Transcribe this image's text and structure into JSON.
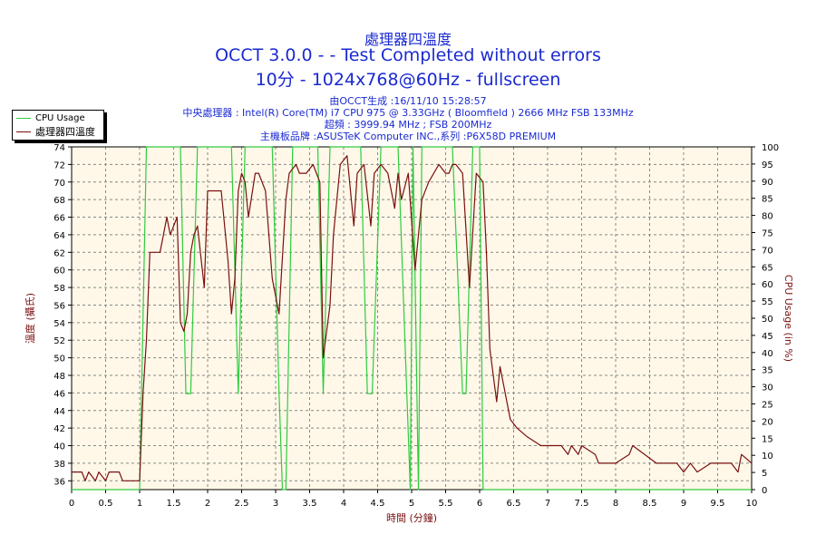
{
  "titles": {
    "line1": "處理器四溫度",
    "line2": "OCCT 3.0.0 -  - Test Completed without errors",
    "line3": "10分 - 1024x768@60Hz - fullscreen"
  },
  "info": {
    "line1": "由OCCT生成 :16/11/10 15:28:57",
    "line2": "中央處理器 : Intel(R) Core(TM) i7 CPU 975 @ 3.33GHz ( Bloomfield ) 2666 MHz FSB 133MHz",
    "line3": "超頻 : 3999.94 MHz ; FSB 200MHz",
    "line4": "主機板品牌 :ASUSTeK Computer INC.,系列 :P6X58D PREMIUM"
  },
  "colors": {
    "title": "#1a2ad1",
    "axis_label": "#7a1010",
    "cpu_usage": "#2ecc40",
    "temperature": "#7a1010",
    "plot_background": "#fff8e8",
    "grid": "#888888"
  },
  "chart_data": {
    "type": "line",
    "xlabel": "時間 (分鐘)",
    "ylabel_left": "溫度 (攝氏)",
    "ylabel_right": "CPU Usage (in %)",
    "xlim": [
      0,
      10
    ],
    "ylim_left": [
      35,
      74
    ],
    "ylim_right": [
      0,
      100
    ],
    "x_ticks": [
      "0",
      "0.5",
      "1",
      "1.5",
      "2",
      "2.5",
      "3",
      "3.5",
      "4",
      "4.5",
      "5",
      "5.5",
      "6",
      "6.5",
      "7",
      "7.5",
      "8",
      "8.5",
      "9",
      "9.5",
      "10"
    ],
    "y_ticks_left": [
      "36",
      "38",
      "40",
      "42",
      "44",
      "46",
      "48",
      "50",
      "52",
      "54",
      "56",
      "58",
      "60",
      "62",
      "64",
      "66",
      "68",
      "70",
      "72",
      "74"
    ],
    "y_ticks_right": [
      "0",
      "5",
      "10",
      "15",
      "20",
      "25",
      "30",
      "35",
      "40",
      "45",
      "50",
      "55",
      "60",
      "65",
      "70",
      "75",
      "80",
      "85",
      "90",
      "95",
      "100"
    ],
    "grid": true,
    "legend_position": "top-left outside plot",
    "series": [
      {
        "name": "CPU Usage",
        "axis": "right",
        "x": [
          0,
          1.0,
          1.1,
          1.5,
          1.6,
          1.68,
          1.75,
          1.85,
          2.0,
          2.2,
          2.35,
          2.45,
          2.55,
          2.75,
          2.95,
          3.05,
          3.1,
          3.15,
          3.25,
          3.5,
          3.62,
          3.7,
          3.8,
          4.0,
          4.25,
          4.35,
          4.42,
          4.55,
          4.8,
          4.98,
          5.02,
          5.1,
          5.15,
          5.3,
          5.6,
          5.75,
          5.8,
          5.9,
          6.0,
          6.05,
          10
        ],
        "y": [
          0,
          0,
          100,
          100,
          100,
          28,
          28,
          100,
          100,
          100,
          100,
          28,
          100,
          100,
          100,
          28,
          0,
          0,
          100,
          100,
          100,
          28,
          100,
          100,
          100,
          28,
          28,
          100,
          100,
          0,
          100,
          0,
          100,
          100,
          100,
          28,
          28,
          100,
          100,
          0,
          0
        ]
      },
      {
        "name": "處理器四溫度",
        "axis": "left",
        "x": [
          0,
          0.15,
          0.2,
          0.25,
          0.35,
          0.4,
          0.5,
          0.55,
          0.7,
          0.75,
          1.0,
          1.05,
          1.1,
          1.15,
          1.2,
          1.3,
          1.35,
          1.4,
          1.45,
          1.55,
          1.6,
          1.65,
          1.7,
          1.75,
          1.8,
          1.85,
          1.95,
          2.0,
          2.2,
          2.3,
          2.35,
          2.4,
          2.45,
          2.5,
          2.55,
          2.6,
          2.7,
          2.75,
          2.85,
          2.95,
          3.05,
          3.15,
          3.2,
          3.3,
          3.35,
          3.45,
          3.55,
          3.6,
          3.65,
          3.7,
          3.8,
          3.85,
          3.95,
          4.05,
          4.15,
          4.2,
          4.3,
          4.4,
          4.45,
          4.55,
          4.65,
          4.75,
          4.8,
          4.85,
          4.95,
          5.05,
          5.15,
          5.25,
          5.4,
          5.5,
          5.55,
          5.6,
          5.65,
          5.75,
          5.85,
          5.95,
          6.05,
          6.1,
          6.15,
          6.25,
          6.3,
          6.35,
          6.45,
          6.55,
          6.7,
          6.9,
          7.2,
          7.3,
          7.35,
          7.45,
          7.5,
          7.7,
          7.75,
          8.0,
          8.2,
          8.25,
          8.6,
          8.8,
          8.9,
          9.0,
          9.1,
          9.2,
          9.4,
          9.7,
          9.8,
          9.85,
          10
        ],
        "y": [
          37,
          37,
          36,
          37,
          36,
          37,
          36,
          37,
          37,
          36,
          36,
          46,
          52,
          62,
          62,
          62,
          64,
          66,
          64,
          66,
          54,
          53,
          55,
          62,
          64,
          65,
          58,
          69,
          69,
          61,
          55,
          59,
          69,
          71,
          70,
          66,
          71,
          71,
          69,
          59,
          55,
          68,
          71,
          72,
          71,
          71,
          72,
          71,
          70,
          50,
          56,
          64,
          72,
          73,
          65,
          71,
          72,
          65,
          71,
          72,
          71,
          67,
          71,
          68,
          71,
          60,
          68,
          70,
          72,
          71,
          71,
          72,
          72,
          71,
          58,
          71,
          70,
          62,
          51,
          45,
          49,
          47,
          43,
          42,
          41,
          40,
          40,
          39,
          40,
          39,
          40,
          39,
          38,
          38,
          39,
          40,
          38,
          38,
          38,
          37,
          38,
          37,
          38,
          38,
          37,
          39,
          38
        ]
      }
    ]
  }
}
